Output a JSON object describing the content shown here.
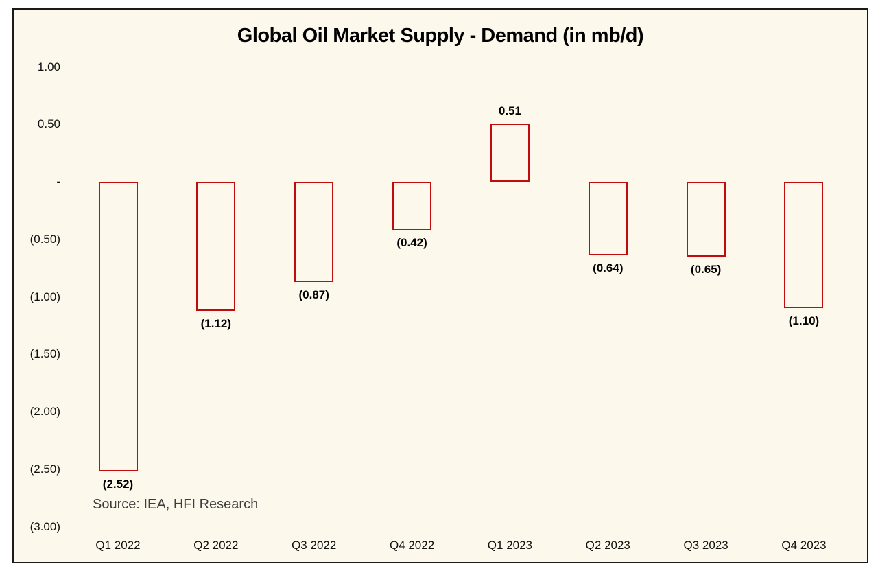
{
  "frame": {
    "background_color": "#FDF8EC",
    "border_color": "#1A1A1A"
  },
  "chart_data": {
    "type": "bar",
    "title": "Global Oil Market Supply - Demand (in mb/d)",
    "categories": [
      "Q1 2022",
      "Q2 2022",
      "Q3 2022",
      "Q4 2022",
      "Q1 2023",
      "Q2 2023",
      "Q3 2023",
      "Q4 2023"
    ],
    "values": [
      -2.52,
      -1.12,
      -0.87,
      -0.42,
      0.51,
      -0.64,
      -0.65,
      -1.1
    ],
    "value_labels": [
      "(2.52)",
      "(1.12)",
      "(0.87)",
      "(0.42)",
      "0.51",
      "(0.64)",
      "(0.65)",
      "(1.10)"
    ],
    "y_ticks": {
      "values": [
        1.0,
        0.5,
        0.0,
        -0.5,
        -1.0,
        -1.5,
        -2.0,
        -2.5,
        -3.0
      ],
      "labels": [
        "1.00",
        "0.50",
        "-",
        "(0.50)",
        "(1.00)",
        "(1.50)",
        "(2.00)",
        "(2.50)",
        "(3.00)"
      ]
    },
    "ylim": [
      -3.0,
      1.0
    ],
    "xlabel": "",
    "ylabel": "",
    "grid": false,
    "legend": false,
    "bar_border_color": "#C00C0C",
    "bar_fill": "transparent",
    "source": "Source: IEA, HFI Research"
  }
}
